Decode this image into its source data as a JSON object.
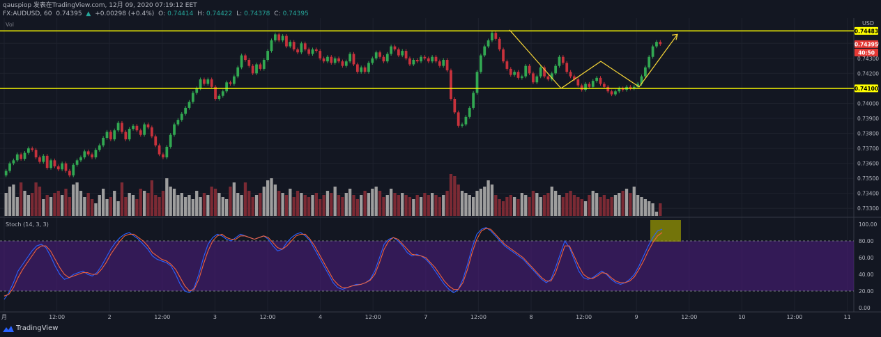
{
  "header": {
    "line1": "qauspiop 发表在TradingView.com, 12月 09, 2020 07:19:12 EET",
    "symbol": "FX:AUDUSD, 60",
    "price": "0.74395",
    "change": "+0.00298 (+0.4%)",
    "o_label": "O:",
    "o": "0.74414",
    "h_label": "H:",
    "h": "0.74422",
    "l_label": "L:",
    "l": "0.74378",
    "c_label": "C:",
    "c": "0.74395"
  },
  "volume_label": "Vol",
  "currency": "USD",
  "stoch_label": "Stoch (14, 3, 3)",
  "brand": "TradingView",
  "colors": {
    "bg": "#131722",
    "up": "#26a69a",
    "candle_up": "#32a852",
    "candle_down": "#c8323c",
    "vol_down": "#7b2a34",
    "vol_up": "#9e9e9e",
    "level": "#ffff00",
    "k_line": "#2962ff",
    "d_line": "#f0623c",
    "stoch_band": "#4a1d7a",
    "highlight": "#9c9c00",
    "last_price": "#e53935"
  },
  "chart_data": [
    {
      "type": "candlestick",
      "title": "FX:AUDUSD, 60",
      "ylabel": "USD",
      "y_ticks": [
        0.744,
        0.743,
        0.742,
        0.741,
        0.74,
        0.739,
        0.738,
        0.737,
        0.736,
        0.735,
        0.734,
        0.733
      ],
      "ylim": [
        0.7325,
        0.7455
      ],
      "x_tick_labels": [
        "月",
        "12:00",
        "2",
        "12:00",
        "3",
        "12:00",
        "4",
        "12:00",
        "7",
        "12:00",
        "8",
        "12:00",
        "9",
        "12:00",
        "10",
        "12:00",
        "11"
      ],
      "price_labels": [
        "0.74483",
        "0.74395",
        "40:50",
        "0.74100"
      ],
      "levels": [
        0.74483,
        0.741
      ],
      "last_price": 0.74395,
      "bar_countdown": "40:50",
      "close": [
        0.7355,
        0.736,
        0.7362,
        0.7366,
        0.7363,
        0.7367,
        0.737,
        0.7369,
        0.7364,
        0.7361,
        0.7365,
        0.7357,
        0.7362,
        0.7358,
        0.7356,
        0.736,
        0.7355,
        0.7352,
        0.7359,
        0.7362,
        0.7364,
        0.7368,
        0.7366,
        0.7364,
        0.7369,
        0.7372,
        0.7377,
        0.7381,
        0.7376,
        0.7382,
        0.7387,
        0.7381,
        0.7376,
        0.7383,
        0.7385,
        0.7382,
        0.7379,
        0.7386,
        0.7384,
        0.7378,
        0.7372,
        0.7366,
        0.7364,
        0.7371,
        0.7379,
        0.7386,
        0.7389,
        0.7393,
        0.7397,
        0.7401,
        0.7407,
        0.741,
        0.7416,
        0.7413,
        0.7416,
        0.7411,
        0.7403,
        0.7405,
        0.7408,
        0.7414,
        0.7413,
        0.7418,
        0.7424,
        0.7432,
        0.7429,
        0.7425,
        0.742,
        0.7426,
        0.7423,
        0.7429,
        0.7435,
        0.7442,
        0.7446,
        0.7442,
        0.7445,
        0.7438,
        0.7441,
        0.7436,
        0.7434,
        0.744,
        0.7436,
        0.7433,
        0.7436,
        0.7435,
        0.743,
        0.7428,
        0.7431,
        0.7427,
        0.743,
        0.7428,
        0.7425,
        0.7428,
        0.7433,
        0.7426,
        0.7421,
        0.7424,
        0.7421,
        0.7427,
        0.743,
        0.7434,
        0.7431,
        0.7428,
        0.7433,
        0.7438,
        0.7436,
        0.7432,
        0.7435,
        0.743,
        0.7426,
        0.7429,
        0.7428,
        0.7431,
        0.743,
        0.7428,
        0.7431,
        0.7428,
        0.7425,
        0.7429,
        0.7422,
        0.7403,
        0.7394,
        0.7385,
        0.7386,
        0.7391,
        0.7397,
        0.7407,
        0.7421,
        0.7432,
        0.7438,
        0.7442,
        0.7447,
        0.7443,
        0.7436,
        0.7428,
        0.7423,
        0.7419,
        0.7421,
        0.7417,
        0.7418,
        0.7425,
        0.742,
        0.7414,
        0.7418,
        0.7424,
        0.7418,
        0.7416,
        0.742,
        0.7425,
        0.7431,
        0.7427,
        0.7421,
        0.7418,
        0.7416,
        0.7412,
        0.7409,
        0.7413,
        0.7411,
        0.7415,
        0.7417,
        0.7413,
        0.7411,
        0.7408,
        0.7406,
        0.7408,
        0.741,
        0.7409,
        0.7411,
        0.741,
        0.7411,
        0.7413,
        0.7418,
        0.7424,
        0.7431,
        0.7438,
        0.7441,
        0.74395
      ],
      "volume_max_label": "0.73600",
      "volume_relative": [
        0.55,
        0.7,
        0.75,
        0.45,
        0.8,
        0.6,
        0.5,
        0.55,
        0.8,
        0.7,
        0.4,
        0.5,
        0.45,
        0.55,
        0.6,
        0.5,
        0.65,
        0.45,
        0.75,
        0.8,
        0.6,
        0.45,
        0.55,
        0.4,
        0.3,
        0.5,
        0.65,
        0.4,
        0.45,
        0.6,
        0.35,
        0.8,
        0.45,
        0.55,
        0.5,
        0.4,
        0.65,
        0.6,
        0.55,
        0.85,
        0.5,
        0.45,
        0.6,
        0.9,
        0.7,
        0.65,
        0.5,
        0.55,
        0.45,
        0.5,
        0.4,
        0.6,
        0.45,
        0.55,
        0.5,
        0.7,
        0.65,
        0.55,
        0.45,
        0.4,
        0.7,
        0.8,
        0.55,
        0.5,
        0.8,
        0.6,
        0.45,
        0.5,
        0.55,
        0.7,
        0.85,
        0.9,
        0.75,
        0.6,
        0.55,
        0.5,
        0.65,
        0.45,
        0.6,
        0.55,
        0.5,
        0.45,
        0.5,
        0.55,
        0.4,
        0.5,
        0.6,
        0.55,
        0.7,
        0.5,
        0.45,
        0.55,
        0.65,
        0.5,
        0.4,
        0.5,
        0.6,
        0.55,
        0.65,
        0.7,
        0.6,
        0.45,
        0.5,
        0.65,
        0.55,
        0.5,
        0.55,
        0.5,
        0.45,
        0.4,
        0.5,
        0.45,
        0.55,
        0.5,
        0.55,
        0.5,
        0.45,
        0.5,
        0.6,
        1.0,
        0.95,
        0.75,
        0.6,
        0.55,
        0.5,
        0.45,
        0.6,
        0.65,
        0.7,
        0.85,
        0.75,
        0.5,
        0.4,
        0.35,
        0.45,
        0.5,
        0.45,
        0.4,
        0.55,
        0.5,
        0.45,
        0.6,
        0.55,
        0.45,
        0.5,
        0.55,
        0.7,
        0.6,
        0.5,
        0.45,
        0.55,
        0.6,
        0.5,
        0.45,
        0.4,
        0.35,
        0.5,
        0.6,
        0.55,
        0.45,
        0.5,
        0.4,
        0.45,
        0.5,
        0.55,
        0.6,
        0.65,
        0.55,
        0.7,
        0.5,
        0.45,
        0.4,
        0.35,
        0.3,
        0.1
      ],
      "annotation_path": [
        0.7449,
        0.741,
        0.7428,
        0.7411,
        0.7446
      ]
    },
    {
      "type": "line",
      "title": "Stoch (14, 3, 3)",
      "ylim": [
        0,
        100
      ],
      "y_ticks": [
        100.0,
        80.0,
        60.0,
        40.0,
        20.0,
        0.0
      ],
      "y_tick_labels": [
        "100.00",
        "80.00",
        "60.00",
        "40.00",
        "20.00",
        "0.00"
      ],
      "band": [
        20,
        80
      ],
      "series": [
        {
          "values": [
            10,
            18,
            30,
            44,
            52,
            60,
            68,
            74,
            76,
            72,
            62,
            50,
            40,
            34,
            36,
            40,
            42,
            44,
            40,
            38,
            42,
            50,
            60,
            70,
            78,
            84,
            88,
            90,
            86,
            82,
            76,
            70,
            62,
            58,
            56,
            54,
            50,
            40,
            28,
            20,
            18,
            24,
            40,
            60,
            76,
            84,
            88,
            86,
            82,
            80,
            84,
            88,
            86,
            84,
            82,
            84,
            86,
            82,
            74,
            68,
            70,
            78,
            84,
            88,
            90,
            86,
            80,
            70,
            60,
            50,
            40,
            30,
            24,
            22,
            24,
            26,
            28,
            28,
            30,
            34,
            44,
            60,
            76,
            82,
            84,
            80,
            74,
            66,
            62,
            64,
            62,
            58,
            52,
            44,
            36,
            28,
            22,
            18,
            22,
            34,
            52,
            72,
            88,
            94,
            96,
            92,
            86,
            80,
            74,
            70,
            66,
            62,
            58,
            52,
            46,
            40,
            34,
            30,
            34,
            48,
            64,
            80,
            72,
            58,
            44,
            36,
            34,
            36,
            40,
            44,
            40,
            34,
            30,
            28,
            30,
            34,
            40,
            50,
            62,
            74,
            84,
            92,
            94
          ]
        },
        {
          "values": [
            14,
            16,
            24,
            36,
            46,
            54,
            62,
            70,
            74,
            74,
            68,
            58,
            48,
            40,
            36,
            38,
            40,
            42,
            42,
            40,
            40,
            46,
            54,
            64,
            72,
            80,
            86,
            88,
            88,
            84,
            80,
            74,
            66,
            62,
            58,
            56,
            52,
            46,
            36,
            26,
            20,
            22,
            34,
            52,
            68,
            80,
            86,
            88,
            84,
            82,
            82,
            86,
            86,
            84,
            82,
            84,
            86,
            84,
            78,
            72,
            70,
            74,
            80,
            86,
            88,
            88,
            82,
            74,
            64,
            54,
            44,
            34,
            28,
            24,
            24,
            26,
            27,
            28,
            30,
            33,
            40,
            54,
            70,
            80,
            84,
            82,
            76,
            70,
            64,
            63,
            62,
            60,
            54,
            48,
            40,
            32,
            26,
            22,
            22,
            30,
            46,
            66,
            82,
            92,
            95,
            94,
            88,
            82,
            76,
            72,
            68,
            64,
            60,
            54,
            48,
            42,
            36,
            32,
            32,
            42,
            58,
            74,
            74,
            62,
            50,
            40,
            36,
            35,
            38,
            42,
            41,
            36,
            32,
            30,
            30,
            32,
            37,
            46,
            56,
            68,
            78,
            86,
            90
          ]
        }
      ]
    }
  ]
}
